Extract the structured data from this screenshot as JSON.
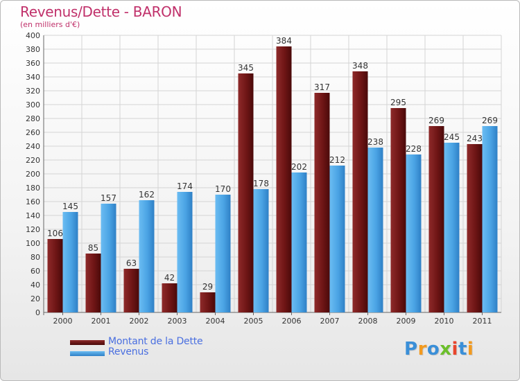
{
  "title": "Revenus/Dette - BARON",
  "subtitle": "(en milliers d'€)",
  "logo": {
    "text": "Proxiti",
    "letters": [
      {
        "ch": "P",
        "color": "#3a8fd8"
      },
      {
        "ch": "r",
        "color": "#f39a1e"
      },
      {
        "ch": "o",
        "color": "#3a8fd8"
      },
      {
        "ch": "x",
        "color": "#6bbf2a"
      },
      {
        "ch": "i",
        "color": "#e8452c"
      },
      {
        "ch": "t",
        "color": "#3a8fd8"
      },
      {
        "ch": "i",
        "color": "#f39a1e"
      }
    ]
  },
  "legend": {
    "dette_label": "Montant de la Dette",
    "revenus_label": "Revenus",
    "dette_color": "#6e1515",
    "revenus_color": "#4aa3e4"
  },
  "chart_data": {
    "type": "bar",
    "title": "Revenus/Dette - BARON",
    "subtitle": "(en milliers d'€)",
    "xlabel": "",
    "ylabel": "",
    "ylim": [
      0,
      400
    ],
    "ytick_step": 20,
    "grid": true,
    "legend_position": "bottom-left",
    "categories": [
      "2000",
      "2001",
      "2002",
      "2003",
      "2004",
      "2005",
      "2006",
      "2007",
      "2008",
      "2009",
      "2010",
      "2011"
    ],
    "series": [
      {
        "name": "Montant de la Dette",
        "color": "#6e1515",
        "values": [
          106,
          85,
          63,
          42,
          29,
          345,
          384,
          317,
          348,
          295,
          269,
          243
        ]
      },
      {
        "name": "Revenus",
        "color": "#4aa3e4",
        "values": [
          145,
          157,
          162,
          174,
          170,
          178,
          202,
          212,
          238,
          228,
          245,
          269
        ]
      }
    ]
  }
}
